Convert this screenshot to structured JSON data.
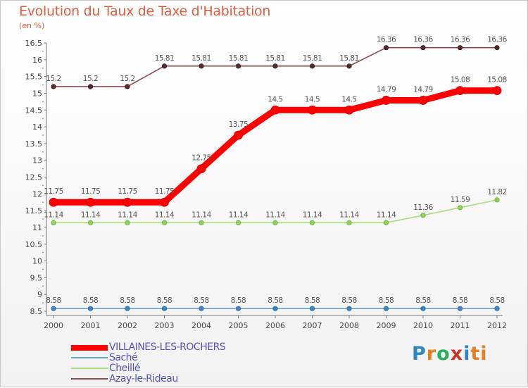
{
  "chart_data": {
    "type": "line",
    "title": "Evolution du Taux de Taxe d'Habitation",
    "unit_label": "(en %)",
    "x": [
      "2000",
      "2001",
      "2002",
      "2003",
      "2004",
      "2005",
      "2006",
      "2007",
      "2008",
      "2009",
      "2010",
      "2011",
      "2012"
    ],
    "ylim": [
      8.5,
      16.5
    ],
    "yticks": [
      "8.5",
      "9",
      "9.5",
      "10",
      "10.5",
      "11",
      "11.5",
      "12",
      "12.5",
      "13",
      "13.5",
      "14",
      "14.5",
      "15",
      "15.5",
      "16",
      "16.5"
    ],
    "grid": false,
    "legend_position": "bottom-left",
    "series": [
      {
        "name": "VILLAINES-LES-ROCHERS",
        "color": "#ff0000",
        "values": [
          11.75,
          11.75,
          11.75,
          11.75,
          12.75,
          13.75,
          14.5,
          14.5,
          14.5,
          14.79,
          14.79,
          15.08,
          15.08
        ],
        "labels": [
          "11.75",
          "11.75",
          "11.75",
          "11.75",
          "12.75",
          "13.75",
          "14.5",
          "14.5",
          "14.5",
          "14.79",
          "14.79",
          "15.08",
          "15.08"
        ]
      },
      {
        "name": "Saché",
        "color": "#6f9fd0",
        "values": [
          8.58,
          8.58,
          8.58,
          8.58,
          8.58,
          8.58,
          8.58,
          8.58,
          8.58,
          8.58,
          8.58,
          8.58,
          8.58
        ],
        "labels": [
          "8.58",
          "8.58",
          "8.58",
          "8.58",
          "8.58",
          "8.58",
          "8.58",
          "8.58",
          "8.58",
          "8.58",
          "8.58",
          "8.58",
          "8.58"
        ]
      },
      {
        "name": "Cheillé",
        "color": "#a6dd7c",
        "values": [
          11.14,
          11.14,
          11.14,
          11.14,
          11.14,
          11.14,
          11.14,
          11.14,
          11.14,
          11.14,
          11.36,
          11.59,
          11.82
        ],
        "labels": [
          "11.14",
          "11.14",
          "11.14",
          "11.14",
          "11.14",
          "11.14",
          "11.14",
          "11.14",
          "11.14",
          "11.14",
          "11.36",
          "11.59",
          "11.82"
        ]
      },
      {
        "name": "Azay-le-Rideau",
        "color": "#8b4b4b",
        "values": [
          15.2,
          15.2,
          15.2,
          15.81,
          15.81,
          15.81,
          15.81,
          15.81,
          15.81,
          16.36,
          16.36,
          16.36,
          16.36
        ],
        "labels": [
          "15.2",
          "15.2",
          "15.2",
          "15.81",
          "15.81",
          "15.81",
          "15.81",
          "15.81",
          "15.81",
          "16.36",
          "16.36",
          "16.36",
          "16.36"
        ]
      }
    ]
  },
  "brand": {
    "letters": [
      "P",
      "r",
      "o",
      "x",
      "i",
      "ti"
    ]
  }
}
